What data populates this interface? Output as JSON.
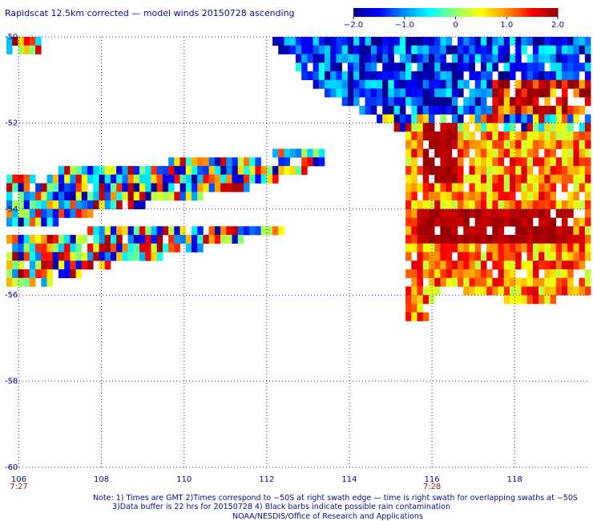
{
  "title": "Rapidscat 12.5km corrected — model winds 20150728 ascending",
  "colorbar": {
    "min": -2.0,
    "max": 2.0,
    "tick_labels": [
      "−2.0",
      "−1.0",
      "0",
      "1.0",
      "2.0"
    ],
    "tick_values": [
      -2.0,
      -1.0,
      0,
      1.0,
      2.0
    ],
    "colors": [
      "#000090",
      "#0000ff",
      "#0090ff",
      "#00ffff",
      "#90ff70",
      "#ffff00",
      "#ff9000",
      "#ff0000",
      "#900000"
    ]
  },
  "axes": {
    "lon_range": [
      105.7,
      119.8
    ],
    "lat_range": [
      -60.0,
      -50.0
    ],
    "lon_ticks": [
      106,
      108,
      110,
      112,
      114,
      116,
      118
    ],
    "lon_tick_labels": [
      "106",
      "108",
      "110",
      "112",
      "114",
      "116",
      "118"
    ],
    "lat_ticks": [
      -50,
      -52,
      -54,
      -56,
      -58,
      -60
    ],
    "lat_tick_labels": [
      "-50",
      "-52",
      "-54",
      "-56",
      "-58",
      "-60"
    ],
    "gridlines": true
  },
  "swath_times": [
    {
      "label": "7:27",
      "lon": 106
    },
    {
      "label": "7:28",
      "lon": 116
    }
  ],
  "swath_regions": [
    {
      "name": "western-swath-upper",
      "polygon": [
        [
          105.7,
          -53.2
        ],
        [
          113.5,
          -52.6
        ],
        [
          113.5,
          -52.95
        ],
        [
          111.2,
          -53.6
        ],
        [
          109.0,
          -53.9
        ],
        [
          107.0,
          -54.3
        ],
        [
          105.7,
          -54.4
        ]
      ]
    },
    {
      "name": "western-swath-lower",
      "polygon": [
        [
          105.7,
          -54.6
        ],
        [
          109.5,
          -54.4
        ],
        [
          112.4,
          -54.3
        ],
        [
          112.4,
          -54.5
        ],
        [
          110.0,
          -55.0
        ],
        [
          108.0,
          -55.35
        ],
        [
          106.5,
          -55.8
        ],
        [
          105.7,
          -55.9
        ]
      ]
    },
    {
      "name": "corner-block",
      "polygon": [
        [
          105.7,
          -50.0
        ],
        [
          106.5,
          -50.0
        ],
        [
          106.5,
          -50.35
        ],
        [
          105.7,
          -50.35
        ]
      ]
    },
    {
      "name": "northern-swath",
      "polygon": [
        [
          112.0,
          -50.0
        ],
        [
          119.8,
          -50.0
        ],
        [
          119.8,
          -52.3
        ],
        [
          117.5,
          -52.6
        ],
        [
          116.0,
          -52.4
        ],
        [
          114.8,
          -52.0
        ],
        [
          113.2,
          -51.2
        ],
        [
          112.5,
          -50.5
        ]
      ]
    },
    {
      "name": "eastern-block",
      "polygon": [
        [
          115.4,
          -52.2
        ],
        [
          119.8,
          -51.7
        ],
        [
          119.8,
          -56.0
        ],
        [
          118.3,
          -56.2
        ],
        [
          116.2,
          -55.8
        ],
        [
          115.9,
          -56.5
        ],
        [
          115.4,
          -56.6
        ]
      ]
    }
  ],
  "strong_positive_regions": [
    {
      "name": "red-core-south",
      "polygon": [
        [
          115.6,
          -54.0
        ],
        [
          119.4,
          -54.0
        ],
        [
          119.4,
          -54.8
        ],
        [
          115.6,
          -54.8
        ]
      ]
    },
    {
      "name": "red-core-north",
      "polygon": [
        [
          115.8,
          -52.0
        ],
        [
          116.6,
          -52.0
        ],
        [
          116.6,
          -53.5
        ],
        [
          115.8,
          -53.5
        ]
      ]
    }
  ],
  "notes": [
    "Note: 1) Times are GMT 2)Times correspond to −50S at right swath edge — time is right swath for overlapping swaths at −50S",
    "3)Data buffer is 22 hrs for 20150728 4) Black barbs indicate possible rain contamination",
    "NOAA/NESDIS/Office of Research and Applications"
  ]
}
